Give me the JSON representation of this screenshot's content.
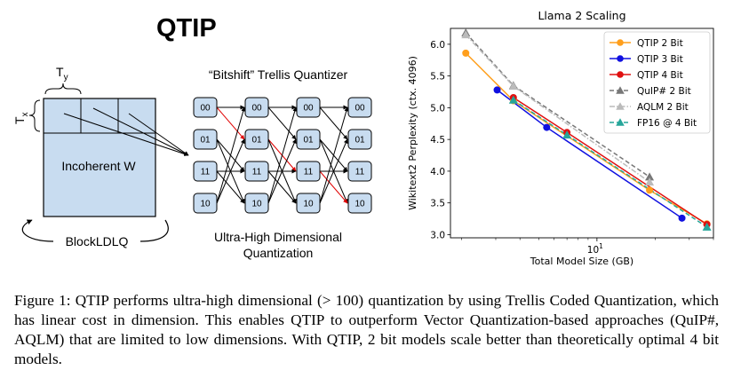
{
  "diagram": {
    "title": "QTIP",
    "ty_label": "T",
    "ty_sub": "y",
    "tx_label": "T",
    "tx_sub": "x",
    "matrix_label": "Incoherent W",
    "blockldlq_label": "BlockLDLQ",
    "trellis_title": "“Bitshift” Trellis Quantizer",
    "node_labels": [
      "00",
      "01",
      "11",
      "10"
    ],
    "bottom_label_line1": "Ultra-High Dimensional",
    "bottom_label_line2": "Quantization",
    "colors": {
      "matrix_fill": "#c8dcf0",
      "node_fill": "#c8dcf0",
      "red_edge": "#e00000"
    }
  },
  "chart_data": {
    "type": "line",
    "title": "Llama 2 Scaling",
    "xlabel": "Total Model Size (GB)",
    "ylabel": "Wikitext2 Perplexity (ctx. 4096)",
    "xscale": "log",
    "xlim": [
      1.75,
      40
    ],
    "ylim": [
      2.95,
      6.25
    ],
    "x_tick_label": "10",
    "x_tick_sup": "1",
    "y_ticks": [
      "3.0",
      "3.5",
      "4.0",
      "4.5",
      "5.0",
      "5.5",
      "6.0"
    ],
    "legend_position": "top-right",
    "series": [
      {
        "name": "QTIP 2 Bit",
        "color": "#ff9f1c",
        "marker": "circle",
        "dash": "solid",
        "x": [
          2.1,
          3.7,
          18.7,
          37
        ],
        "y": [
          5.86,
          5.11,
          3.7,
          3.17
        ]
      },
      {
        "name": "QTIP 3 Bit",
        "color": "#1010e0",
        "marker": "circle",
        "dash": "solid",
        "x": [
          3.05,
          5.5,
          27.5
        ],
        "y": [
          5.28,
          4.69,
          3.26
        ]
      },
      {
        "name": "QTIP 4 Bit",
        "color": "#e01010",
        "marker": "circle",
        "dash": "solid",
        "x": [
          3.7,
          7.0,
          37
        ],
        "y": [
          5.16,
          4.61,
          3.16
        ]
      },
      {
        "name": "QuIP# 2 Bit",
        "color": "#777777",
        "marker": "triangle",
        "dash": "dashed",
        "x": [
          2.1,
          3.7,
          18.7
        ],
        "y": [
          6.18,
          5.35,
          3.91
        ]
      },
      {
        "name": "AQLM 2 Bit",
        "color": "#bbbbbb",
        "marker": "triangle",
        "dash": "dashdot",
        "x": [
          2.1,
          3.7,
          18.7
        ],
        "y": [
          6.15,
          5.34,
          3.83
        ]
      },
      {
        "name": "FP16 @ 4 Bit",
        "color": "#26a69a",
        "marker": "triangle",
        "dash": "dashed",
        "x": [
          3.7,
          7.0,
          37
        ],
        "y": [
          5.12,
          4.57,
          3.12
        ]
      }
    ]
  },
  "caption": {
    "figure_label": "Figure 1:",
    "text": "QTIP performs ultra-high dimensional (> 100) quantization by using Trellis Coded Quantization, which has linear cost in dimension. This enables QTIP to outperform Vector Quantization-based approaches (QuIP#, AQLM) that are limited to low dimensions. With QTIP, 2 bit models scale better than theoretically optimal 4 bit models."
  }
}
